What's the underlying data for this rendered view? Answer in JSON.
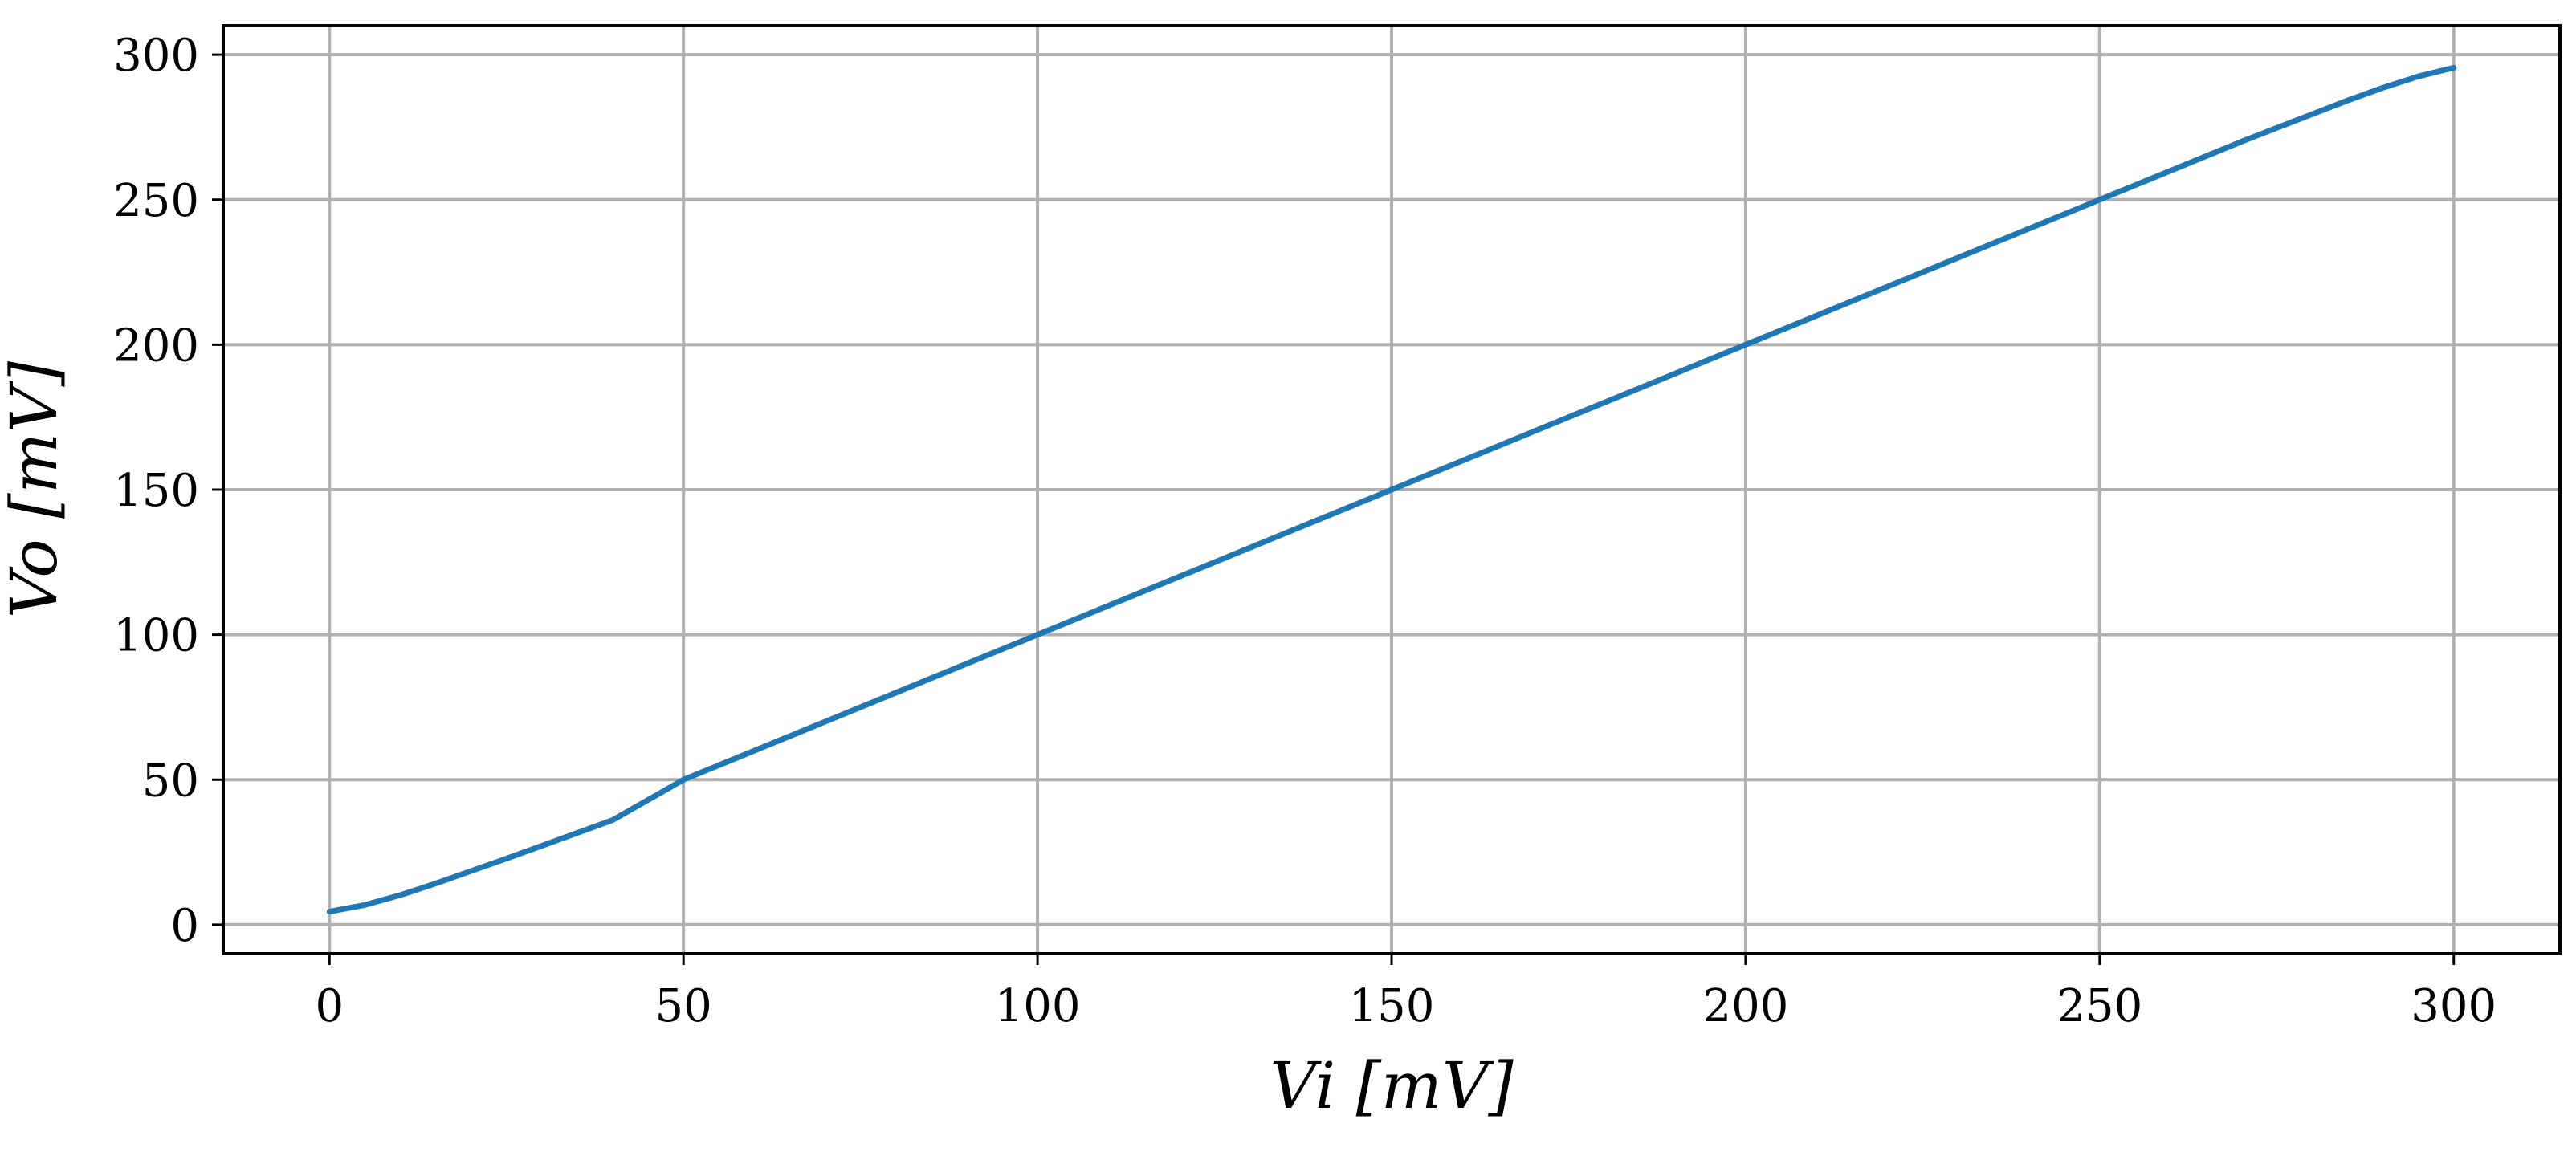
{
  "chart_data": {
    "type": "line",
    "xlabel": "Vi [mV]",
    "ylabel": "Vo [mV]",
    "xlim": [
      -15,
      315
    ],
    "ylim": [
      -10,
      310
    ],
    "x_ticks": [
      0,
      50,
      100,
      150,
      200,
      250,
      300
    ],
    "y_ticks": [
      0,
      50,
      100,
      150,
      200,
      250,
      300
    ],
    "x_tick_labels": [
      "0",
      "50",
      "100",
      "150",
      "200",
      "250",
      "300"
    ],
    "y_tick_labels": [
      "0",
      "50",
      "100",
      "150",
      "200",
      "250",
      "300"
    ],
    "grid": true,
    "series": [
      {
        "color": "#1f77b4",
        "x": [
          0,
          5,
          10,
          15,
          20,
          25,
          30,
          40,
          50,
          60,
          80,
          100,
          120,
          150,
          180,
          200,
          220,
          250,
          270,
          280,
          285,
          290,
          295,
          300
        ],
        "y": [
          4.5,
          6.8,
          10.2,
          14.2,
          18.5,
          22.8,
          27.2,
          36.1,
          50.0,
          60.0,
          80.0,
          100.0,
          120.0,
          150.0,
          180.0,
          200.0,
          220.0,
          250.0,
          270.0,
          279.5,
          284.2,
          288.6,
          292.5,
          295.5
        ]
      }
    ]
  }
}
